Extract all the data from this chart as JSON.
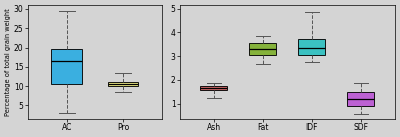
{
  "left_boxes": {
    "labels": [
      "AC",
      "Pro"
    ],
    "colors": [
      "#29ABE2",
      "#EDE97A"
    ],
    "stats": [
      {
        "med": 16.5,
        "q1": 10.5,
        "q3": 19.5,
        "whislo": 3.0,
        "whishi": 29.5,
        "fliers": []
      },
      {
        "med": 10.5,
        "q1": 10.0,
        "q3": 11.2,
        "whislo": 8.5,
        "whishi": 13.5,
        "fliers": []
      }
    ],
    "ylim": [
      1.5,
      31
    ],
    "yticks": [
      5,
      10,
      15,
      20,
      25,
      30
    ],
    "ylabel": "Percentage of total grain weight"
  },
  "right_boxes": {
    "labels": [
      "Ash",
      "Fat",
      "IDF",
      "SDF"
    ],
    "colors": [
      "#CD5C5C",
      "#7DAF2A",
      "#2ABFBF",
      "#BA55D3"
    ],
    "stats": [
      {
        "med": 1.65,
        "q1": 1.55,
        "q3": 1.75,
        "whislo": 1.25,
        "whishi": 1.85,
        "fliers": []
      },
      {
        "med": 3.3,
        "q1": 3.05,
        "q3": 3.55,
        "whislo": 2.65,
        "whishi": 3.85,
        "fliers": []
      },
      {
        "med": 3.35,
        "q1": 3.05,
        "q3": 3.7,
        "whislo": 2.75,
        "whishi": 4.85,
        "fliers": []
      },
      {
        "med": 1.2,
        "q1": 0.9,
        "q3": 1.5,
        "whislo": 0.55,
        "whishi": 1.85,
        "fliers": []
      }
    ],
    "ylim": [
      0.35,
      5.15
    ],
    "yticks": [
      1,
      2,
      3,
      4,
      5
    ],
    "ylabel": ""
  },
  "background_color": "#D4D4D4",
  "whisker_color": "#555555",
  "median_color": "#000000",
  "cap_color": "#555555"
}
